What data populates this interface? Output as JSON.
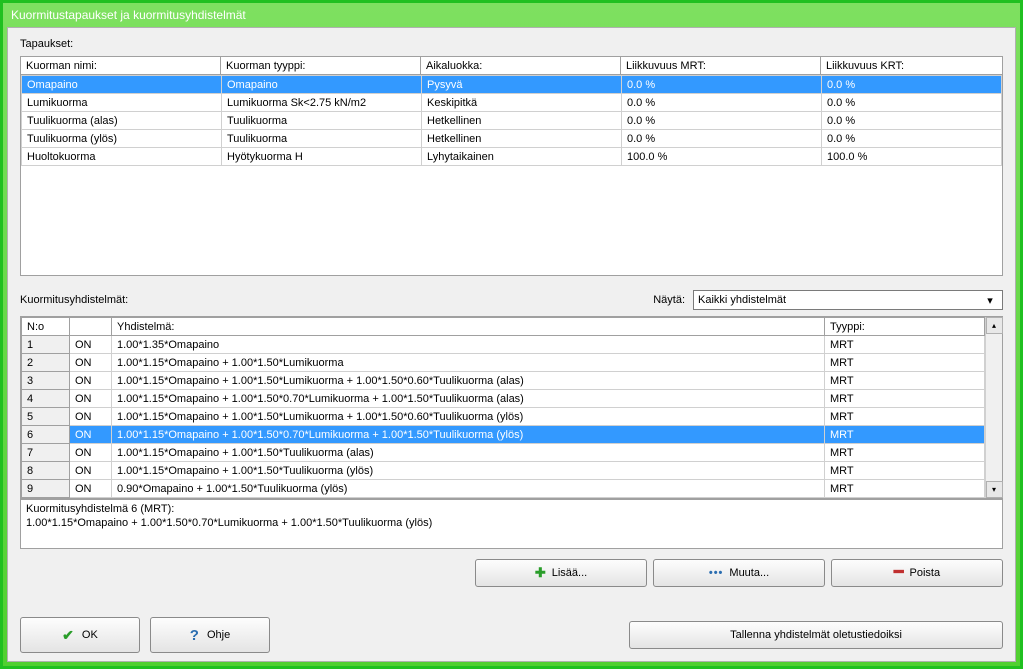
{
  "window": {
    "title": "Kuormitustapaukset ja kuormitusyhdistelmät"
  },
  "cases": {
    "section_label": "Tapaukset:",
    "headers": {
      "name": "Kuorman nimi:",
      "type": "Kuorman tyyppi:",
      "timeclass": "Aikaluokka:",
      "liik_mrt": "Liikkuvuus MRT:",
      "liik_krt": "Liikkuvuus KRT:"
    },
    "rows": [
      {
        "name": "Omapaino",
        "type": "Omapaino",
        "timeclass": "Pysyvä",
        "mrt": "0.0 %",
        "krt": "0.0 %",
        "selected": true
      },
      {
        "name": "Lumikuorma",
        "type": "Lumikuorma Sk<2.75 kN/m2",
        "timeclass": "Keskipitkä",
        "mrt": "0.0 %",
        "krt": "0.0 %",
        "selected": false
      },
      {
        "name": "Tuulikuorma (alas)",
        "type": "Tuulikuorma",
        "timeclass": "Hetkellinen",
        "mrt": "0.0 %",
        "krt": "0.0 %",
        "selected": false
      },
      {
        "name": "Tuulikuorma (ylös)",
        "type": "Tuulikuorma",
        "timeclass": "Hetkellinen",
        "mrt": "0.0 %",
        "krt": "0.0 %",
        "selected": false
      },
      {
        "name": "Huoltokuorma",
        "type": "Hyötykuorma H",
        "timeclass": "Lyhytaikainen",
        "mrt": "100.0 %",
        "krt": "100.0 %",
        "selected": false
      }
    ]
  },
  "combinations": {
    "section_label": "Kuormitusyhdistelmät:",
    "filter_label": "Näytä:",
    "filter_value": "Kaikki yhdistelmät",
    "headers": {
      "no": "N:o",
      "on": "",
      "combo": "Yhdistelmä:",
      "type": "Tyyppi:"
    },
    "rows": [
      {
        "no": "1",
        "on": "ON",
        "combo": "1.00*1.35*Omapaino",
        "type": "MRT",
        "selected": false
      },
      {
        "no": "2",
        "on": "ON",
        "combo": "1.00*1.15*Omapaino + 1.00*1.50*Lumikuorma",
        "type": "MRT",
        "selected": false
      },
      {
        "no": "3",
        "on": "ON",
        "combo": "1.00*1.15*Omapaino + 1.00*1.50*Lumikuorma + 1.00*1.50*0.60*Tuulikuorma (alas)",
        "type": "MRT",
        "selected": false
      },
      {
        "no": "4",
        "on": "ON",
        "combo": "1.00*1.15*Omapaino + 1.00*1.50*0.70*Lumikuorma + 1.00*1.50*Tuulikuorma (alas)",
        "type": "MRT",
        "selected": false
      },
      {
        "no": "5",
        "on": "ON",
        "combo": "1.00*1.15*Omapaino + 1.00*1.50*Lumikuorma + 1.00*1.50*0.60*Tuulikuorma (ylös)",
        "type": "MRT",
        "selected": false
      },
      {
        "no": "6",
        "on": "ON",
        "combo": "1.00*1.15*Omapaino + 1.00*1.50*0.70*Lumikuorma + 1.00*1.50*Tuulikuorma (ylös)",
        "type": "MRT",
        "selected": true
      },
      {
        "no": "7",
        "on": "ON",
        "combo": "1.00*1.15*Omapaino + 1.00*1.50*Tuulikuorma (alas)",
        "type": "MRT",
        "selected": false
      },
      {
        "no": "8",
        "on": "ON",
        "combo": "1.00*1.15*Omapaino + 1.00*1.50*Tuulikuorma (ylös)",
        "type": "MRT",
        "selected": false
      },
      {
        "no": "9",
        "on": "ON",
        "combo": "0.90*Omapaino + 1.00*1.50*Tuulikuorma (ylös)",
        "type": "MRT",
        "selected": false
      }
    ],
    "detail_line1": "Kuormitusyhdistelmä 6 (MRT):",
    "detail_line2": "1.00*1.15*Omapaino + 1.00*1.50*0.70*Lumikuorma + 1.00*1.50*Tuulikuorma (ylös)"
  },
  "buttons": {
    "add": "Lisää...",
    "edit": "Muuta...",
    "delete": "Poista",
    "ok": "OK",
    "help": "Ohje",
    "save_defaults": "Tallenna yhdistelmät oletustiedoiksi"
  },
  "styling": {
    "accent": "#20c020",
    "selection": "#3399ff",
    "panel_bg": "#f0f0f0",
    "grid_border": "#a0a0a0",
    "cell_border": "#d0d0d0"
  }
}
